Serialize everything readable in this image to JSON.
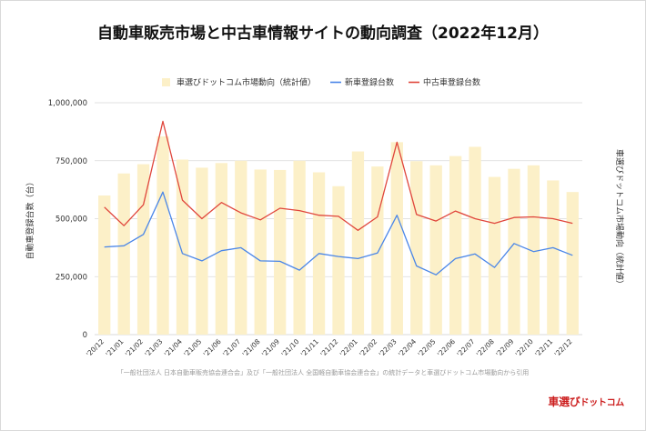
{
  "title": "自動車販売市場と中古車情報サイトの動向調査（2022年12月）",
  "footnote": "「一般社団法人 日本自動車販売協会連合会」及び「一般社団法人 全国軽自動車協会連合会」の統計データと車選びドットコム市場動向から引用",
  "logo": {
    "main": "車選び",
    "sub": "ドットコム"
  },
  "colors": {
    "bar": "#fcf0c8",
    "new_line": "#4a86e8",
    "used_line": "#e0463c",
    "grid": "#d9d9d9"
  },
  "chart_data": {
    "type": "bar+line",
    "categories": [
      "'20/12",
      "'21/01",
      "'21/02",
      "'21/03",
      "'21/04",
      "'21/05",
      "'21/06",
      "'21/07",
      "'21/08",
      "'21/09",
      "'21/10",
      "'21/11",
      "'21/12",
      "'22/01",
      "'22/02",
      "'22/03",
      "'22/04",
      "'22/05",
      "'22/06",
      "'22/07",
      "'22/08",
      "'22/09",
      "'22/10",
      "'22/11",
      "'22/12"
    ],
    "y_left_ticks": [
      "0",
      "250,000",
      "500,000",
      "750,000",
      "1,000,000"
    ],
    "ylim_left": [
      0,
      1000000
    ],
    "ylabel_left": "自動車登録台数（台）",
    "ylabel_right": "車選びドットコム市場動向（統計値）",
    "legend_position": "top-center",
    "series": [
      {
        "name": "車選びドットコム市場動向（統計値）",
        "kind": "bar",
        "values": [
          600000,
          695000,
          735000,
          855000,
          755000,
          720000,
          740000,
          750000,
          712000,
          710000,
          750000,
          700000,
          640000,
          790000,
          725000,
          830000,
          748000,
          730000,
          770000,
          810000,
          680000,
          715000,
          730000,
          665000,
          615000
        ]
      },
      {
        "name": "新車登録台数",
        "kind": "line",
        "values": [
          378000,
          383000,
          432000,
          615000,
          350000,
          318000,
          362000,
          375000,
          318000,
          316000,
          278000,
          350000,
          337000,
          328000,
          352000,
          515000,
          296000,
          258000,
          328000,
          348000,
          290000,
          393000,
          358000,
          375000,
          342000
        ]
      },
      {
        "name": "中古車登録台数",
        "kind": "line",
        "values": [
          550000,
          470000,
          560000,
          920000,
          580000,
          500000,
          570000,
          525000,
          495000,
          545000,
          535000,
          515000,
          510000,
          450000,
          508000,
          830000,
          518000,
          490000,
          533000,
          500000,
          480000,
          505000,
          508000,
          500000,
          480000
        ]
      }
    ]
  }
}
